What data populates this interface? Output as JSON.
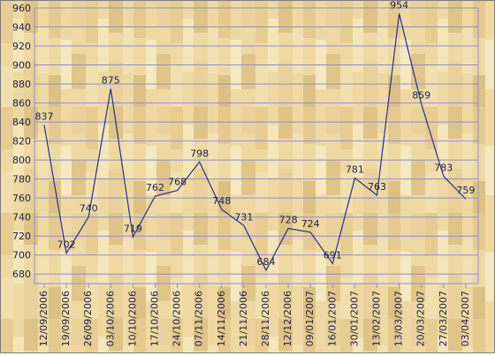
{
  "chart_data": {
    "type": "line",
    "title": "",
    "xlabel": "",
    "ylabel": "",
    "ylim": [
      670,
      960
    ],
    "yticks": [
      680,
      700,
      720,
      740,
      760,
      780,
      800,
      820,
      840,
      860,
      880,
      900,
      920,
      940,
      960
    ],
    "grid": true,
    "colors": {
      "line": "#2b2f8e",
      "grid": "#8f8fd0",
      "text": "#222244",
      "background": "#efd9a3",
      "plank_light": "#f4e3b5",
      "plank_dark": "#e2c98d"
    },
    "x_ticks": [
      "12/09/2006",
      "19/09/2006",
      "26/09/2006",
      "03/10/2006",
      "10/10/2006",
      "17/10/2006",
      "24/10/2006",
      "07/11/2006",
      "14/11/2006",
      "21/11/2006",
      "28/11/2006",
      "12/12/2006",
      "09/01/2007",
      "16/01/2007",
      "30/01/2007",
      "13/02/2007",
      "13/03/2007",
      "20/03/2007",
      "27/03/2007",
      "03/04/2007"
    ],
    "series": [
      {
        "x": [
          "12/09/2006",
          "19/09/2006",
          "26/09/2006",
          "03/10/2006",
          "10/10/2006",
          "17/10/2006",
          "24/10/2006",
          "07/11/2006",
          "14/11/2006",
          "21/11/2006",
          "28/11/2006",
          "12/12/2006",
          "09/01/2007",
          "16/01/2007",
          "30/01/2007",
          "13/02/2007",
          "13/03/2007",
          "20/03/2007",
          "27/03/2007",
          "03/04/2007"
        ],
        "values": [
          837,
          702,
          740,
          875,
          719,
          762,
          768,
          798,
          748,
          731,
          684,
          728,
          724,
          691,
          781,
          763,
          954,
          859,
          783,
          759
        ]
      }
    ]
  }
}
